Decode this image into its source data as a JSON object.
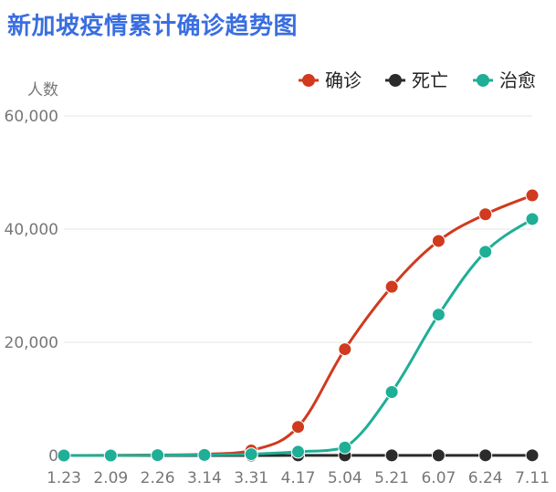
{
  "chart_data": {
    "type": "line",
    "title": "新加坡疫情累计确诊趋势图",
    "ylabel": "人数",
    "xlabel": "",
    "categories": [
      "1.23",
      "2.09",
      "2.26",
      "3.14",
      "3.31",
      "4.17",
      "5.04",
      "5.21",
      "6.07",
      "6.24",
      "7.11"
    ],
    "y_ticks": [
      "0",
      "20,000",
      "40,000",
      "60,000"
    ],
    "ylim": [
      0,
      60000
    ],
    "grid": true,
    "legend_position": "top-right",
    "series": [
      {
        "name": "确诊",
        "color": "#d03a1f",
        "values": [
          1,
          43,
          93,
          226,
          879,
          5050,
          18778,
          29812,
          37910,
          42623,
          45961
        ]
      },
      {
        "name": "死亡",
        "color": "#2b2b2b",
        "values": [
          0,
          0,
          0,
          0,
          3,
          11,
          18,
          23,
          25,
          26,
          26
        ]
      },
      {
        "name": "治愈",
        "color": "#1fae96",
        "values": [
          0,
          2,
          62,
          105,
          228,
          656,
          1408,
          11207,
          24886,
          35995,
          41780
        ]
      }
    ]
  }
}
